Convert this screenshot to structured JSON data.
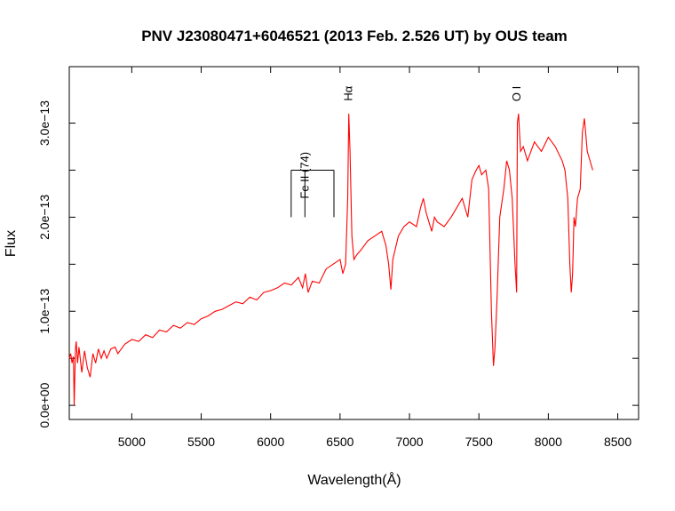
{
  "chart_data": {
    "type": "line",
    "title": "PNV J23080471+6046521 (2013 Feb. 2.526 UT) by OUS team",
    "xlabel": "Wavelength(Å)",
    "ylabel": "Flux",
    "xlim": [
      4550,
      8650
    ],
    "ylim": [
      -1.5e-14,
      3.6e-13
    ],
    "x_ticks": [
      5000,
      5500,
      6000,
      6500,
      7000,
      7500,
      8000,
      8500
    ],
    "x_tick_labels": [
      "5000",
      "5500",
      "6000",
      "6500",
      "7000",
      "7500",
      "8000",
      "8500"
    ],
    "y_ticks": [
      0,
      5e-14,
      1e-13,
      1.5e-13,
      2e-13,
      2.5e-13,
      3e-13
    ],
    "y_tick_labels": [
      "0.0e+00",
      "1.0e−13",
      "2.0e−13",
      "3.0e−13"
    ],
    "y_labeled_ticks": [
      0,
      1e-13,
      2e-13,
      3e-13
    ],
    "grid": false,
    "line_color": "#ff0000",
    "series": [
      {
        "x": [
          4550,
          4560,
          4570,
          4580,
          4585,
          4595,
          4600,
          4610,
          4620,
          4640,
          4660,
          4680,
          4700,
          4720,
          4740,
          4760,
          4780,
          4800,
          4820,
          4850,
          4880,
          4900,
          4950,
          5000,
          5050,
          5100,
          5150,
          5200,
          5250,
          5300,
          5350,
          5400,
          5450,
          5500,
          5550,
          5600,
          5650,
          5700,
          5750,
          5800,
          5850,
          5900,
          5950,
          6000,
          6050,
          6100,
          6150,
          6200,
          6230,
          6250,
          6270,
          6300,
          6350,
          6400,
          6450,
          6500,
          6520,
          6540,
          6555,
          6563,
          6572,
          6585,
          6600,
          6620,
          6650,
          6700,
          6750,
          6800,
          6830,
          6850,
          6866,
          6880,
          6920,
          6960,
          7000,
          7050,
          7080,
          7100,
          7120,
          7140,
          7160,
          7180,
          7200,
          7250,
          7300,
          7340,
          7380,
          7420,
          7450,
          7480,
          7500,
          7520,
          7550,
          7570,
          7590,
          7605,
          7615,
          7630,
          7650,
          7680,
          7700,
          7720,
          7740,
          7760,
          7772,
          7777,
          7785,
          7800,
          7820,
          7850,
          7900,
          7950,
          8000,
          8050,
          8100,
          8120,
          8140,
          8155,
          8165,
          8175,
          8185,
          8195,
          8210,
          8230,
          8245,
          8260,
          8280,
          8300,
          8320
        ],
        "y": [
          5e-14,
          5.5e-14,
          4.5e-14,
          5.2e-14,
          0.0,
          6e-14,
          6.8e-14,
          4.5e-14,
          6.2e-14,
          3.5e-14,
          5.8e-14,
          4e-14,
          3e-14,
          5.5e-14,
          4.5e-14,
          6e-14,
          5e-14,
          5.8e-14,
          5e-14,
          6e-14,
          6.2e-14,
          5.5e-14,
          6.5e-14,
          7e-14,
          6.8e-14,
          7.5e-14,
          7.2e-14,
          8e-14,
          7.8e-14,
          8.5e-14,
          8.2e-14,
          8.8e-14,
          8.6e-14,
          9.2e-14,
          9.5e-14,
          1e-13,
          1.02e-13,
          1.06e-13,
          1.1e-13,
          1.08e-13,
          1.15e-13,
          1.12e-13,
          1.2e-13,
          1.22e-13,
          1.25e-13,
          1.3e-13,
          1.28e-13,
          1.36e-13,
          1.25e-13,
          1.4e-13,
          1.2e-13,
          1.32e-13,
          1.3e-13,
          1.45e-13,
          1.5e-13,
          1.55e-13,
          1.4e-13,
          1.5e-13,
          2.2e-13,
          3.1e-13,
          2.7e-13,
          1.8e-13,
          1.55e-13,
          1.6e-13,
          1.65e-13,
          1.75e-13,
          1.8e-13,
          1.85e-13,
          1.7e-13,
          1.5e-13,
          1.23e-13,
          1.55e-13,
          1.8e-13,
          1.9e-13,
          1.95e-13,
          1.9e-13,
          2.1e-13,
          2.2e-13,
          2.05e-13,
          1.95e-13,
          1.85e-13,
          2e-13,
          1.95e-13,
          1.9e-13,
          2e-13,
          2.1e-13,
          2.2e-13,
          2e-13,
          2.4e-13,
          2.5e-13,
          2.55e-13,
          2.45e-13,
          2.5e-13,
          2.3e-13,
          1e-13,
          4.2e-14,
          6e-14,
          1.1e-13,
          2e-13,
          2.3e-13,
          2.6e-13,
          2.5e-13,
          2.2e-13,
          1.5e-13,
          1.2e-13,
          3e-13,
          3.1e-13,
          2.7e-13,
          2.75e-13,
          2.6e-13,
          2.8e-13,
          2.7e-13,
          2.85e-13,
          2.75e-13,
          2.6e-13,
          2.5e-13,
          2.2e-13,
          1.5e-13,
          1.2e-13,
          1.4e-13,
          2e-13,
          1.9e-13,
          2.2e-13,
          2.3e-13,
          2.9e-13,
          3.05e-13,
          2.7e-13,
          2.6e-13,
          2.5e-13
        ]
      }
    ],
    "annotations": [
      {
        "text": "Hα",
        "x": 6563,
        "y_top": 3.3e-13
      },
      {
        "text": "O I",
        "x": 7775,
        "y_top": 3.3e-13
      },
      {
        "text": "Fe II (74)",
        "x": 6247,
        "y_top": 2.6e-13,
        "bracket_x": [
          6148,
          6247,
          6456
        ],
        "bracket_y": [
          2e-13,
          2.5e-13
        ]
      }
    ]
  }
}
